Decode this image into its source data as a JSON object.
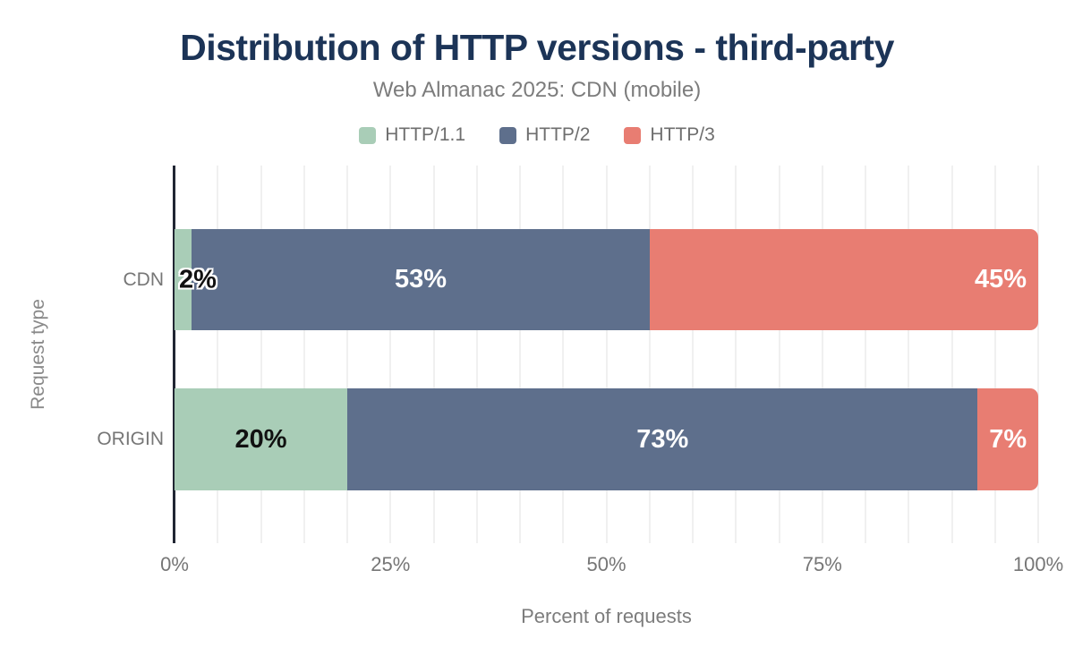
{
  "chart_data": {
    "type": "bar",
    "stacked": true,
    "orientation": "horizontal",
    "title": "Distribution of HTTP versions - third-party",
    "subtitle": "Web Almanac 2025: CDN (mobile)",
    "xlabel": "Percent of requests",
    "ylabel": "Request type",
    "categories": [
      "CDN",
      "ORIGIN"
    ],
    "series": [
      {
        "name": "HTTP/1.1",
        "color": "#a9cdb7",
        "values": [
          2,
          20
        ]
      },
      {
        "name": "HTTP/2",
        "color": "#5e6f8c",
        "values": [
          53,
          73
        ]
      },
      {
        "name": "HTTP/3",
        "color": "#e87d72",
        "values": [
          45,
          7
        ]
      }
    ],
    "data_labels": [
      [
        {
          "text": "2%",
          "style": "dark-outline",
          "align": "start"
        },
        {
          "text": "53%",
          "style": "light",
          "align": "center"
        },
        {
          "text": "45%",
          "style": "light",
          "align": "end"
        }
      ],
      [
        {
          "text": "20%",
          "style": "dark",
          "align": "center"
        },
        {
          "text": "73%",
          "style": "light",
          "align": "center"
        },
        {
          "text": "7%",
          "style": "light",
          "align": "center"
        }
      ]
    ],
    "xlim": [
      0,
      100
    ],
    "x_ticks": [
      {
        "label": "0%",
        "value": 0
      },
      {
        "label": "25%",
        "value": 25
      },
      {
        "label": "50%",
        "value": 50
      },
      {
        "label": "75%",
        "value": 75
      },
      {
        "label": "100%",
        "value": 100
      }
    ],
    "grid": {
      "vertical_minor_step": 5,
      "color": "#f0f0f0"
    },
    "legend_position": "top",
    "colors": {
      "title": "#1c3457",
      "subtitle": "#7c7c7c",
      "axis_line": "#212633",
      "tick_text": "#767676"
    }
  }
}
